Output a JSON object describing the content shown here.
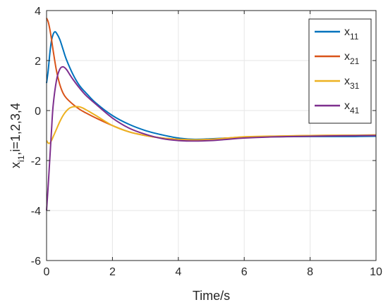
{
  "chart_data": {
    "type": "line",
    "xlabel": "Time/s",
    "ylabel_parts": {
      "base": "x",
      "sub": "i1",
      "rest": ",i=1,2,3,4"
    },
    "xlim": [
      0,
      10
    ],
    "ylim": [
      -6,
      4
    ],
    "xticks": [
      0,
      2,
      4,
      6,
      8,
      10
    ],
    "xtick_labels": [
      "0",
      "2",
      "4",
      "6",
      "8",
      "10"
    ],
    "yticks": [
      -6,
      -4,
      -2,
      0,
      2,
      4
    ],
    "ytick_labels": [
      "-6",
      "-4",
      "-2",
      "0",
      "2",
      "4"
    ],
    "grid": true,
    "legend_position": "top-right",
    "series": [
      {
        "name": "x11",
        "legend_base": "x",
        "legend_sub": "11",
        "color": "#0072BD",
        "x": [
          0,
          0.05,
          0.1,
          0.15,
          0.2,
          0.25,
          0.3,
          0.4,
          0.5,
          0.6,
          0.8,
          1.0,
          1.2,
          1.5,
          2.0,
          2.5,
          3.0,
          3.5,
          4.0,
          4.5,
          5.0,
          5.5,
          6.0,
          7.0,
          8.0,
          9.0,
          10.0
        ],
        "y": [
          1.1,
          1.6,
          2.3,
          2.8,
          3.05,
          3.15,
          3.1,
          2.85,
          2.45,
          2.05,
          1.45,
          1.0,
          0.7,
          0.3,
          -0.2,
          -0.55,
          -0.8,
          -0.97,
          -1.1,
          -1.15,
          -1.13,
          -1.1,
          -1.07,
          -1.05,
          -1.04,
          -1.04,
          -1.03
        ]
      },
      {
        "name": "x21",
        "legend_base": "x",
        "legend_sub": "21",
        "color": "#D95319",
        "x": [
          0,
          0.05,
          0.1,
          0.15,
          0.2,
          0.3,
          0.4,
          0.5,
          0.6,
          0.8,
          1.0,
          1.2,
          1.5,
          2.0,
          2.5,
          3.0,
          3.5,
          4.0,
          4.5,
          5.0,
          5.5,
          6.0,
          7.0,
          8.0,
          9.0,
          10.0
        ],
        "y": [
          3.7,
          3.55,
          3.25,
          2.85,
          2.4,
          1.6,
          1.05,
          0.7,
          0.5,
          0.25,
          0.05,
          -0.1,
          -0.3,
          -0.6,
          -0.85,
          -1.0,
          -1.1,
          -1.15,
          -1.17,
          -1.15,
          -1.1,
          -1.06,
          -1.03,
          -1.0,
          -0.99,
          -0.98
        ]
      },
      {
        "name": "x31",
        "legend_base": "x",
        "legend_sub": "31",
        "color": "#EDB120",
        "x": [
          0,
          0.05,
          0.1,
          0.15,
          0.2,
          0.3,
          0.4,
          0.5,
          0.6,
          0.7,
          0.8,
          0.9,
          1.0,
          1.1,
          1.2,
          1.5,
          2.0,
          2.5,
          3.0,
          3.5,
          4.0,
          4.5,
          5.0,
          5.5,
          6.0,
          7.0,
          8.0,
          9.0,
          10.0
        ],
        "y": [
          -1.2,
          -1.3,
          -1.3,
          -1.2,
          -1.05,
          -0.75,
          -0.45,
          -0.2,
          -0.02,
          0.1,
          0.15,
          0.16,
          0.15,
          0.1,
          0.03,
          -0.2,
          -0.6,
          -0.85,
          -1.0,
          -1.1,
          -1.15,
          -1.17,
          -1.15,
          -1.1,
          -1.05,
          -1.02,
          -1.0,
          -0.99,
          -0.98
        ]
      },
      {
        "name": "x41",
        "legend_base": "x",
        "legend_sub": "41",
        "color": "#7E2F8E",
        "x": [
          0,
          0.05,
          0.1,
          0.15,
          0.2,
          0.3,
          0.4,
          0.5,
          0.6,
          0.7,
          0.8,
          1.0,
          1.2,
          1.5,
          2.0,
          2.5,
          3.0,
          3.5,
          4.0,
          4.5,
          5.0,
          5.5,
          6.0,
          7.0,
          8.0,
          9.0,
          10.0
        ],
        "y": [
          -4.0,
          -3.0,
          -1.9,
          -0.8,
          0.2,
          1.2,
          1.65,
          1.75,
          1.65,
          1.45,
          1.25,
          0.9,
          0.6,
          0.25,
          -0.3,
          -0.7,
          -0.95,
          -1.12,
          -1.2,
          -1.22,
          -1.2,
          -1.15,
          -1.1,
          -1.05,
          -1.03,
          -1.01,
          -1.0
        ]
      }
    ]
  }
}
